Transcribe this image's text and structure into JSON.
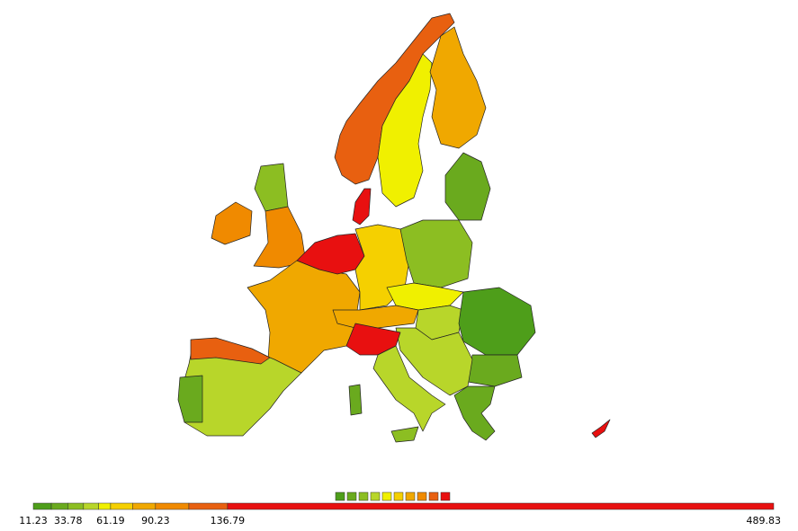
{
  "chart_data": {
    "type": "choropleth-legend",
    "xlim": [
      11.23,
      489.83
    ],
    "xticks": [
      11.23,
      33.78,
      61.19,
      90.23,
      136.79,
      489.83
    ],
    "breaks": [
      11.23,
      22.9,
      33.78,
      43.7,
      53.5,
      61.19,
      75.4,
      90.23,
      111.8,
      136.79,
      489.83
    ],
    "colors": [
      "#4e9e1a",
      "#6aaa1e",
      "#8cbe22",
      "#b8d62a",
      "#f0f000",
      "#f5d000",
      "#f0a800",
      "#f08a00",
      "#e86010",
      "#e81010"
    ]
  }
}
